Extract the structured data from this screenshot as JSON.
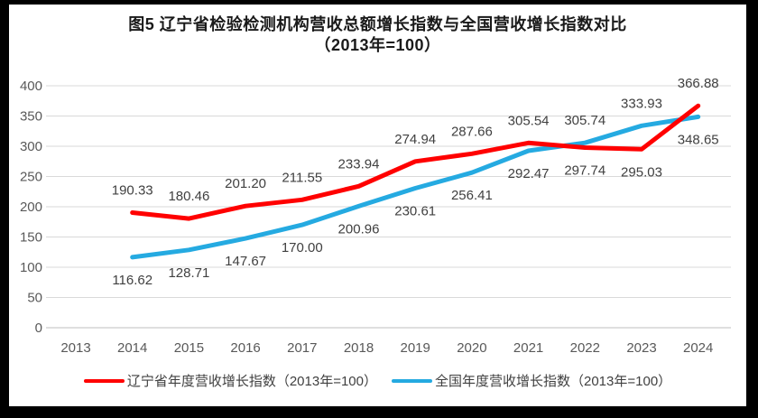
{
  "frame": {
    "outer_background": "#000000",
    "canvas_background": "#ffffff"
  },
  "chart_data": {
    "type": "line",
    "title": "图5  辽宁省检验检测机构营收总额增长指数与全国营收增长指数对比",
    "subtitle": "（2013年=100）",
    "categories": [
      "2013",
      "2014",
      "2015",
      "2016",
      "2017",
      "2018",
      "2019",
      "2020",
      "2021",
      "2022",
      "2023",
      "2024"
    ],
    "series": [
      {
        "name": "辽宁省年度营收增长指数（2013年=100）",
        "color": "#ff0000",
        "start_category_index": 1,
        "values": [
          190.33,
          180.46,
          201.2,
          211.55,
          233.94,
          274.94,
          287.66,
          305.54,
          297.74,
          295.03,
          366.88
        ],
        "label_side": [
          "above",
          "above",
          "above",
          "above",
          "above",
          "above",
          "above",
          "above",
          "below",
          "below",
          "above"
        ]
      },
      {
        "name": "全国年度营收增长指数（2013年=100）",
        "color": "#25aae1",
        "start_category_index": 1,
        "values": [
          116.62,
          128.71,
          147.67,
          170.0,
          200.96,
          230.61,
          256.41,
          292.47,
          305.74,
          333.93,
          348.65
        ],
        "label_side": [
          "below",
          "below",
          "below",
          "below",
          "below",
          "below",
          "below",
          "below",
          "above",
          "above",
          "below"
        ]
      }
    ],
    "ylim": [
      0,
      400
    ],
    "ytick_step": 50,
    "yticks": [
      0,
      50,
      100,
      150,
      200,
      250,
      300,
      350,
      400
    ],
    "grid": true,
    "legend_position": "bottom",
    "colors": {
      "axis_text": "#595959",
      "data_label": "#404040",
      "gridline": "#d9d9d9",
      "axis_line": "#bfbfbf"
    }
  }
}
